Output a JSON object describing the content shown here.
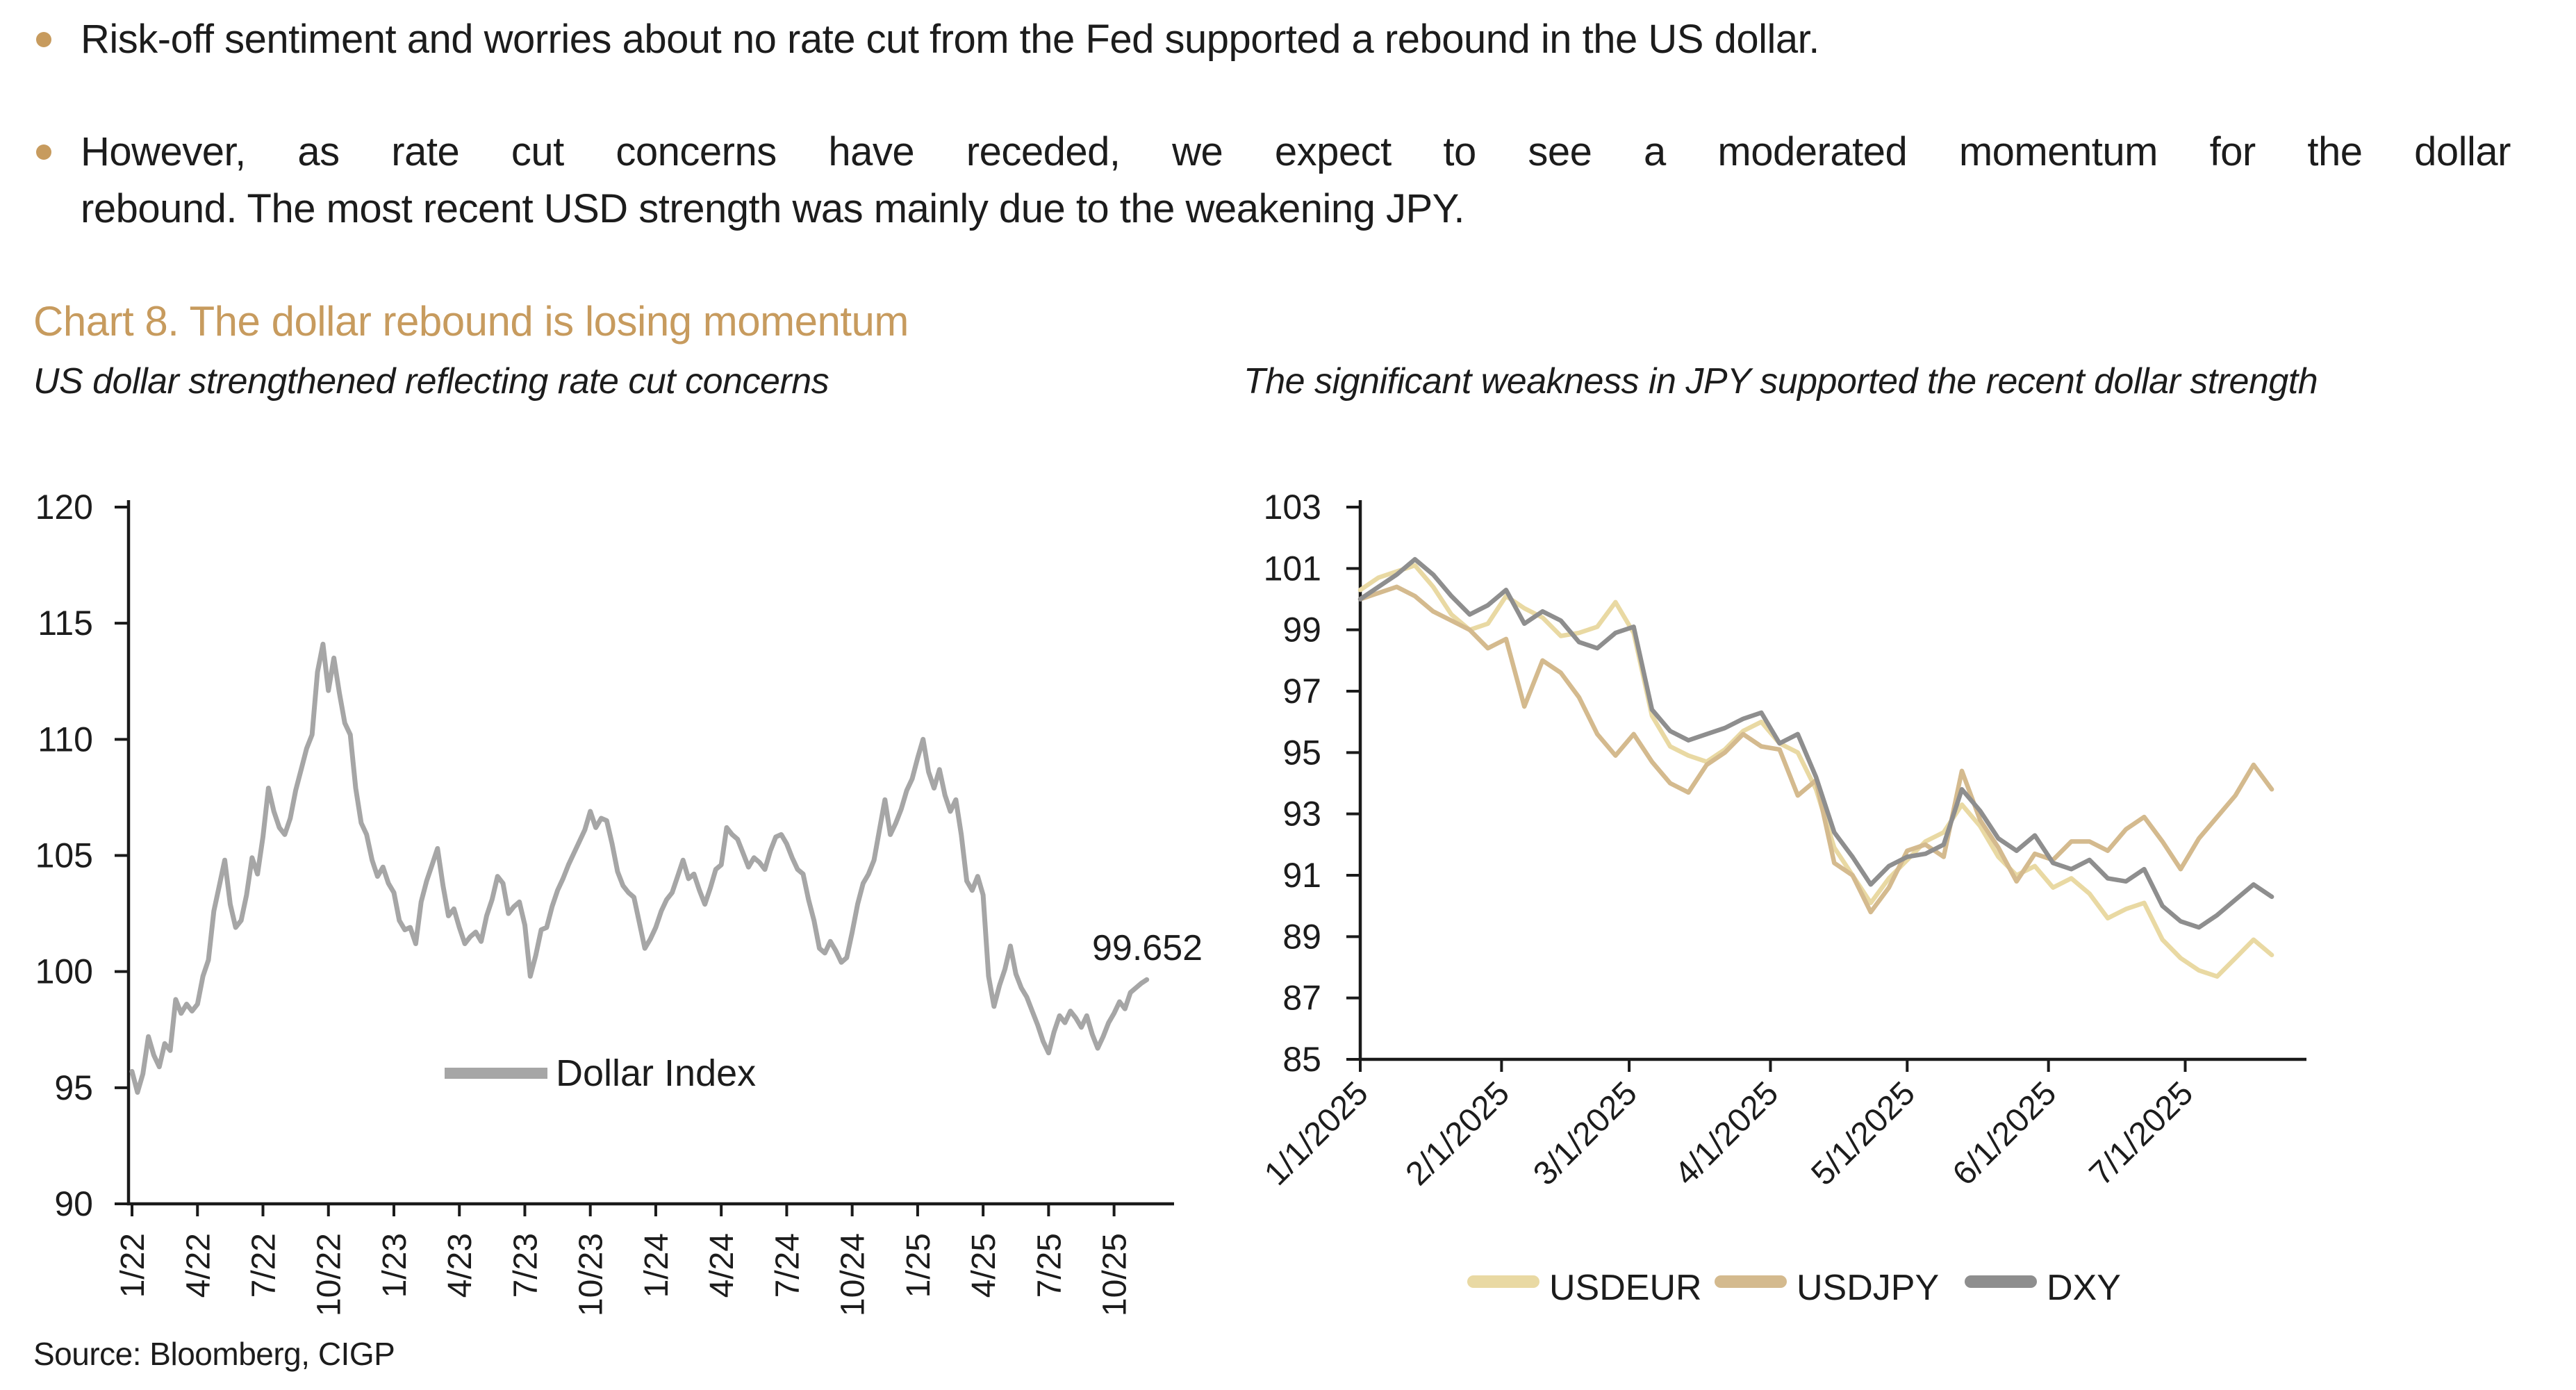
{
  "colors": {
    "accent_gold": "#c79b5e",
    "ink": "#1c1c1c",
    "axis": "#1a1a1a"
  },
  "bullets": [
    {
      "text": "Risk-off sentiment and worries about no rate cut from the Fed supported a rebound in the US dollar."
    },
    {
      "line1": "However, as rate cut concerns have receded, we expect to see a moderated momentum for the dollar",
      "line2": "rebound. The most recent USD strength was mainly due to the weakening JPY."
    }
  ],
  "title": "Chart 8. The dollar rebound is losing momentum",
  "source": "Source: Bloomberg, CIGP",
  "chart_data": [
    {
      "type": "line",
      "title": "US dollar strengthened reflecting rate cut concerns",
      "xlabel": "",
      "ylabel": "",
      "ylim": [
        90,
        120
      ],
      "grid": false,
      "legend_position": "inside-center",
      "annotation": {
        "text": "99.652"
      },
      "yticks": {
        "values": [
          90,
          95,
          100,
          105,
          110,
          115,
          120
        ],
        "labels": [
          "90",
          "95",
          "100",
          "105",
          "110",
          "115",
          "120"
        ]
      },
      "xticks": {
        "values": [
          0,
          3,
          6,
          9,
          12,
          15,
          18,
          21,
          24,
          27,
          30,
          33,
          36,
          39,
          42,
          45
        ],
        "labels": [
          "1/22",
          "4/22",
          "7/22",
          "10/22",
          "1/23",
          "4/23",
          "7/23",
          "10/23",
          "1/24",
          "4/24",
          "7/24",
          "10/24",
          "1/25",
          "4/25",
          "7/25",
          "10/25"
        ]
      },
      "series": [
        {
          "name": "Dollar Index",
          "color": "#a6a6a6",
          "x_start": 0,
          "x_step": 0.25,
          "values": [
            95.7,
            94.8,
            95.6,
            97.2,
            96.4,
            95.9,
            96.9,
            96.6,
            98.8,
            98.2,
            98.6,
            98.3,
            98.6,
            99.8,
            100.5,
            102.6,
            103.7,
            104.8,
            102.9,
            101.9,
            102.2,
            103.3,
            104.9,
            104.2,
            105.8,
            107.9,
            106.9,
            106.2,
            105.9,
            106.6,
            107.8,
            108.7,
            109.6,
            110.2,
            112.9,
            114.1,
            112.1,
            113.5,
            112.0,
            110.7,
            110.2,
            107.9,
            106.4,
            105.9,
            104.8,
            104.1,
            104.5,
            103.8,
            103.4,
            102.2,
            101.8,
            101.9,
            101.2,
            103.0,
            103.9,
            104.6,
            105.3,
            103.7,
            102.4,
            102.7,
            101.9,
            101.2,
            101.5,
            101.7,
            101.3,
            102.4,
            103.1,
            104.1,
            103.8,
            102.5,
            102.8,
            103.0,
            102.0,
            99.8,
            100.7,
            101.8,
            101.9,
            102.8,
            103.5,
            104.0,
            104.6,
            105.1,
            105.6,
            106.1,
            106.9,
            106.2,
            106.6,
            106.5,
            105.5,
            104.3,
            103.7,
            103.4,
            103.2,
            102.1,
            101.0,
            101.4,
            101.9,
            102.6,
            103.1,
            103.4,
            104.1,
            104.8,
            104.0,
            104.2,
            103.5,
            102.9,
            103.6,
            104.4,
            104.6,
            106.2,
            105.9,
            105.7,
            105.1,
            104.5,
            104.9,
            104.7,
            104.4,
            105.2,
            105.8,
            105.9,
            105.5,
            104.9,
            104.4,
            104.2,
            103.1,
            102.2,
            101.0,
            100.8,
            101.3,
            100.9,
            100.4,
            100.6,
            101.7,
            102.9,
            103.8,
            104.2,
            104.8,
            106.1,
            107.4,
            105.9,
            106.4,
            107.0,
            107.8,
            108.3,
            109.2,
            110.0,
            108.6,
            107.9,
            108.7,
            107.6,
            106.9,
            107.4,
            105.9,
            103.9,
            103.5,
            104.1,
            103.3,
            99.8,
            98.5,
            99.4,
            100.1,
            101.1,
            99.9,
            99.3,
            98.9,
            98.3,
            97.7,
            97.0,
            96.5,
            97.4,
            98.1,
            97.8,
            98.3,
            98.0,
            97.6,
            98.1,
            97.3,
            96.7,
            97.2,
            97.8,
            98.2,
            98.7,
            98.4,
            99.1,
            99.3,
            99.5,
            99.652
          ]
        }
      ]
    },
    {
      "type": "line",
      "title": "The significant weakness in JPY supported the recent dollar strength",
      "xlabel": "",
      "ylabel": "",
      "ylim": [
        85,
        103
      ],
      "grid": false,
      "legend_position": "below-center",
      "yticks": {
        "values": [
          85,
          87,
          89,
          91,
          93,
          95,
          97,
          99,
          101,
          103
        ],
        "labels": [
          "85",
          "87",
          "89",
          "91",
          "93",
          "95",
          "97",
          "99",
          "101",
          "103"
        ]
      },
      "xticks": {
        "values": [
          0,
          31,
          59,
          90,
          120,
          151,
          181
        ],
        "labels": [
          "1/1/2025",
          "2/1/2025",
          "3/1/2025",
          "4/1/2025",
          "5/1/2025",
          "6/1/2025",
          "7/1/2025"
        ]
      },
      "series": [
        {
          "name": "USDEUR",
          "color": "#e9d9a3",
          "x_start": 0,
          "x_step": 4,
          "values": [
            100.3,
            100.7,
            100.9,
            101.1,
            100.4,
            99.5,
            99.0,
            99.2,
            100.1,
            99.7,
            99.4,
            98.8,
            98.9,
            99.1,
            99.9,
            98.9,
            96.2,
            95.2,
            94.9,
            94.7,
            95.1,
            95.7,
            96.0,
            95.3,
            95.0,
            93.8,
            91.9,
            91.0,
            90.1,
            90.9,
            91.5,
            92.1,
            92.4,
            93.3,
            92.6,
            91.6,
            91.0,
            91.3,
            90.6,
            90.9,
            90.4,
            89.6,
            89.9,
            90.1,
            88.9,
            88.3,
            87.9,
            87.7,
            88.3,
            88.9,
            88.4
          ]
        },
        {
          "name": "USDJPY",
          "color": "#d4ba8e",
          "x_start": 0,
          "x_step": 4,
          "values": [
            100.0,
            100.2,
            100.4,
            100.1,
            99.6,
            99.3,
            99.0,
            98.4,
            98.7,
            96.5,
            98.0,
            97.6,
            96.8,
            95.6,
            94.9,
            95.6,
            94.7,
            94.0,
            93.7,
            94.6,
            95.0,
            95.6,
            95.2,
            95.1,
            93.6,
            94.1,
            91.4,
            91.0,
            89.8,
            90.6,
            91.8,
            92.0,
            91.6,
            94.4,
            92.8,
            91.9,
            90.8,
            91.7,
            91.5,
            92.1,
            92.1,
            91.8,
            92.5,
            92.9,
            92.1,
            91.2,
            92.2,
            92.9,
            93.6,
            94.6,
            93.8
          ]
        },
        {
          "name": "DXY",
          "color": "#8e8e8e",
          "x_start": 0,
          "x_step": 4,
          "values": [
            100.0,
            100.4,
            100.8,
            101.3,
            100.8,
            100.1,
            99.5,
            99.8,
            100.3,
            99.2,
            99.6,
            99.3,
            98.6,
            98.4,
            98.9,
            99.1,
            96.4,
            95.7,
            95.4,
            95.6,
            95.8,
            96.1,
            96.3,
            95.3,
            95.6,
            94.2,
            92.4,
            91.6,
            90.7,
            91.3,
            91.6,
            91.7,
            92.0,
            93.8,
            93.1,
            92.2,
            91.8,
            92.3,
            91.4,
            91.2,
            91.5,
            90.9,
            90.8,
            91.2,
            90.0,
            89.5,
            89.3,
            89.7,
            90.2,
            90.7,
            90.3
          ]
        }
      ]
    }
  ]
}
